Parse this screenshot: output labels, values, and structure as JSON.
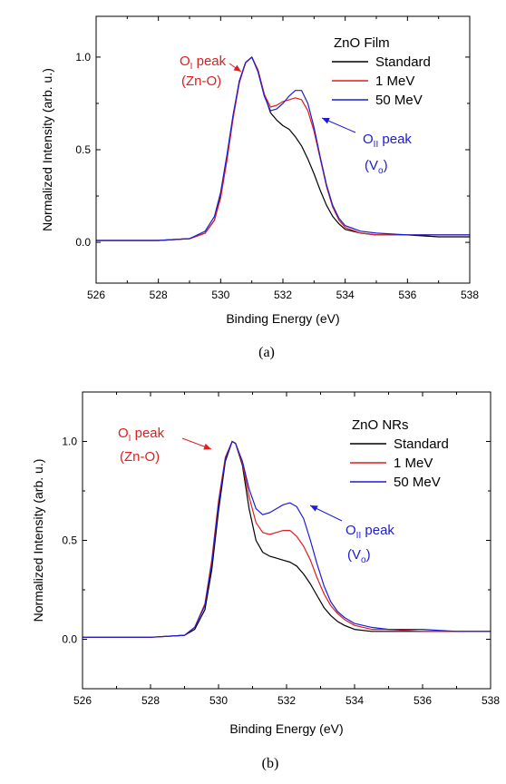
{
  "chart_data": [
    {
      "type": "line",
      "panel_label": "(a)",
      "legend_title": "ZnO Film",
      "legend_position": "top-right",
      "xlabel": "Binding Energy (eV)",
      "ylabel": "Normalized Intensity (arb. u.)",
      "xlim": [
        526,
        538
      ],
      "ylim": [
        -0.22,
        1.22
      ],
      "xticks": [
        526,
        528,
        530,
        532,
        534,
        536,
        538
      ],
      "xtick_labels": [
        "526",
        "528",
        "530",
        "532",
        "534",
        "536",
        "538"
      ],
      "yticks": [
        0.0,
        0.5,
        1.0
      ],
      "ytick_labels": [
        "0.0",
        "0.5",
        "1.0"
      ],
      "grid": false,
      "annotations": [
        {
          "main": "O",
          "sub": "I",
          "rest": " peak",
          "line2": "(Zn-O)",
          "color": "#e11d1d"
        },
        {
          "main": "O",
          "sub": "II",
          "rest": " peak",
          "line2_main": "(V",
          "line2_sub": "o",
          "line2_rest": ")",
          "color": "#1c1cd6"
        }
      ],
      "series": [
        {
          "name": "Standard",
          "color": "#000000",
          "x": [
            526,
            527,
            528,
            529,
            529.5,
            529.8,
            530.0,
            530.2,
            530.4,
            530.6,
            530.8,
            531.0,
            531.2,
            531.4,
            531.6,
            531.8,
            532.0,
            532.2,
            532.4,
            532.6,
            532.8,
            533.0,
            533.2,
            533.4,
            533.6,
            533.8,
            534.0,
            534.5,
            535,
            536,
            537,
            538
          ],
          "y": [
            0.01,
            0.01,
            0.01,
            0.02,
            0.05,
            0.12,
            0.25,
            0.45,
            0.68,
            0.87,
            0.97,
            1.0,
            0.93,
            0.8,
            0.7,
            0.66,
            0.63,
            0.61,
            0.57,
            0.52,
            0.45,
            0.37,
            0.28,
            0.2,
            0.14,
            0.1,
            0.07,
            0.05,
            0.04,
            0.04,
            0.03,
            0.03
          ]
        },
        {
          "name": "1 MeV",
          "color": "#e11d1d",
          "x": [
            526,
            527,
            528,
            529,
            529.5,
            529.8,
            530.0,
            530.2,
            530.4,
            530.6,
            530.8,
            531.0,
            531.2,
            531.4,
            531.6,
            531.8,
            532.0,
            532.2,
            532.4,
            532.6,
            532.8,
            533.0,
            533.2,
            533.4,
            533.6,
            533.8,
            534.0,
            534.5,
            535,
            536,
            537,
            538
          ],
          "y": [
            0.01,
            0.01,
            0.01,
            0.02,
            0.05,
            0.12,
            0.24,
            0.44,
            0.67,
            0.86,
            0.97,
            1.0,
            0.93,
            0.8,
            0.73,
            0.74,
            0.76,
            0.77,
            0.78,
            0.77,
            0.71,
            0.6,
            0.45,
            0.3,
            0.19,
            0.12,
            0.08,
            0.05,
            0.04,
            0.04,
            0.04,
            0.04
          ]
        },
        {
          "name": "50 MeV",
          "color": "#1c1cd6",
          "x": [
            526,
            527,
            528,
            529,
            529.5,
            529.8,
            530.0,
            530.2,
            530.4,
            530.6,
            530.8,
            531.0,
            531.2,
            531.4,
            531.6,
            531.8,
            532.0,
            532.2,
            532.4,
            532.6,
            532.8,
            533.0,
            533.2,
            533.4,
            533.6,
            533.8,
            534.0,
            534.5,
            535,
            536,
            537,
            538
          ],
          "y": [
            0.01,
            0.01,
            0.01,
            0.02,
            0.06,
            0.14,
            0.27,
            0.47,
            0.69,
            0.87,
            0.97,
            1.0,
            0.92,
            0.79,
            0.71,
            0.72,
            0.75,
            0.79,
            0.82,
            0.82,
            0.75,
            0.62,
            0.46,
            0.31,
            0.2,
            0.13,
            0.09,
            0.06,
            0.05,
            0.04,
            0.04,
            0.04
          ]
        }
      ]
    },
    {
      "type": "line",
      "panel_label": "(b)",
      "legend_title": "ZnO NRs",
      "legend_position": "top-right",
      "xlabel": "Binding Energy (eV)",
      "ylabel": "Normalized Intensity (arb. u.)",
      "xlim": [
        526,
        538
      ],
      "ylim": [
        -0.25,
        1.25
      ],
      "xticks": [
        526,
        528,
        530,
        532,
        534,
        536,
        538
      ],
      "xtick_labels": [
        "526",
        "528",
        "530",
        "532",
        "534",
        "536",
        "538"
      ],
      "yticks": [
        0.0,
        0.5,
        1.0
      ],
      "ytick_labels": [
        "0.0",
        "0.5",
        "1.0"
      ],
      "grid": false,
      "annotations": [
        {
          "main": "O",
          "sub": "I",
          "rest": " peak",
          "line2": "(Zn-O)",
          "color": "#e11d1d"
        },
        {
          "main": "O",
          "sub": "II",
          "rest": " peak",
          "line2_main": "(V",
          "line2_sub": "o",
          "line2_rest": ")",
          "color": "#1c1cd6"
        }
      ],
      "series": [
        {
          "name": "Standard",
          "color": "#000000",
          "x": [
            526,
            527,
            528,
            529,
            529.3,
            529.6,
            529.8,
            530.0,
            530.2,
            530.4,
            530.5,
            530.7,
            530.9,
            531.1,
            531.3,
            531.5,
            531.7,
            531.9,
            532.1,
            532.3,
            532.5,
            532.7,
            532.9,
            533.1,
            533.3,
            533.5,
            533.7,
            534.0,
            534.5,
            535,
            536,
            537,
            538
          ],
          "y": [
            0.01,
            0.01,
            0.01,
            0.02,
            0.05,
            0.15,
            0.35,
            0.65,
            0.9,
            1.0,
            0.99,
            0.88,
            0.66,
            0.5,
            0.44,
            0.42,
            0.41,
            0.4,
            0.39,
            0.37,
            0.33,
            0.28,
            0.22,
            0.16,
            0.12,
            0.09,
            0.07,
            0.05,
            0.04,
            0.04,
            0.04,
            0.04,
            0.04
          ]
        },
        {
          "name": "1 MeV",
          "color": "#e11d1d",
          "x": [
            526,
            527,
            528,
            529,
            529.3,
            529.6,
            529.8,
            530.0,
            530.2,
            530.4,
            530.5,
            530.7,
            530.9,
            531.1,
            531.3,
            531.5,
            531.7,
            531.9,
            532.1,
            532.3,
            532.5,
            532.7,
            532.9,
            533.1,
            533.3,
            533.5,
            533.7,
            534.0,
            534.5,
            535,
            536,
            537,
            538
          ],
          "y": [
            0.01,
            0.01,
            0.01,
            0.02,
            0.06,
            0.18,
            0.4,
            0.7,
            0.92,
            1.0,
            0.99,
            0.89,
            0.72,
            0.59,
            0.54,
            0.53,
            0.54,
            0.55,
            0.55,
            0.52,
            0.47,
            0.4,
            0.31,
            0.23,
            0.17,
            0.13,
            0.1,
            0.07,
            0.05,
            0.05,
            0.04,
            0.04,
            0.04
          ]
        },
        {
          "name": "50 MeV",
          "color": "#1c1cd6",
          "x": [
            526,
            527,
            528,
            529,
            529.3,
            529.6,
            529.8,
            530.0,
            530.2,
            530.4,
            530.5,
            530.7,
            530.9,
            531.1,
            531.3,
            531.5,
            531.7,
            531.9,
            532.1,
            532.3,
            532.5,
            532.7,
            532.9,
            533.1,
            533.3,
            533.5,
            533.7,
            534.0,
            534.5,
            535,
            536,
            537,
            538
          ],
          "y": [
            0.01,
            0.01,
            0.01,
            0.02,
            0.06,
            0.17,
            0.38,
            0.68,
            0.91,
            1.0,
            0.99,
            0.9,
            0.76,
            0.66,
            0.63,
            0.64,
            0.66,
            0.68,
            0.69,
            0.67,
            0.61,
            0.5,
            0.38,
            0.27,
            0.19,
            0.14,
            0.11,
            0.08,
            0.06,
            0.05,
            0.05,
            0.04,
            0.04
          ]
        }
      ]
    }
  ]
}
